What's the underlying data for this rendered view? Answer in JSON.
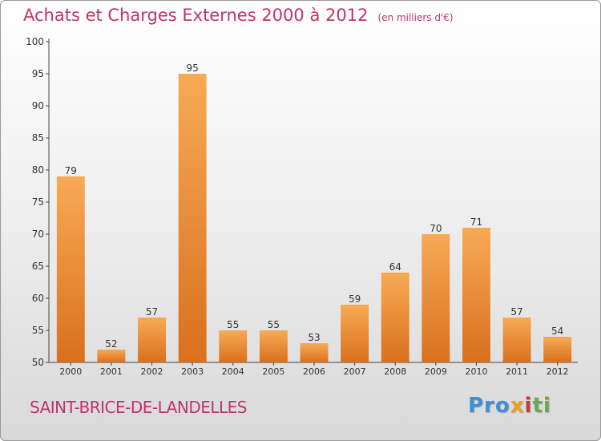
{
  "header": {
    "title": "Achats et Charges Externes 2000 à 2012",
    "unit": "(en milliers d'€)"
  },
  "footer": {
    "commune": "SAINT-BRICE-DE-LANDELLES",
    "brand_parts": [
      "Pro",
      "x",
      "i",
      "ti"
    ]
  },
  "colors": {
    "bar_top": "#f7aa55",
    "bar_bottom": "#d9701e",
    "title": "#c0336b",
    "axis": "#444444"
  },
  "chart_data": {
    "type": "bar",
    "title": "Achats et Charges Externes 2000 à 2012",
    "categories": [
      "2000",
      "2001",
      "2002",
      "2003",
      "2004",
      "2005",
      "2006",
      "2007",
      "2008",
      "2009",
      "2010",
      "2011",
      "2012"
    ],
    "values": [
      79,
      52,
      57,
      95,
      55,
      55,
      53,
      59,
      64,
      70,
      71,
      57,
      54
    ],
    "ylim": [
      50,
      100
    ],
    "yticks": [
      50,
      55,
      60,
      65,
      70,
      75,
      80,
      85,
      90,
      95,
      100
    ],
    "grid": false,
    "data_labels": true
  }
}
